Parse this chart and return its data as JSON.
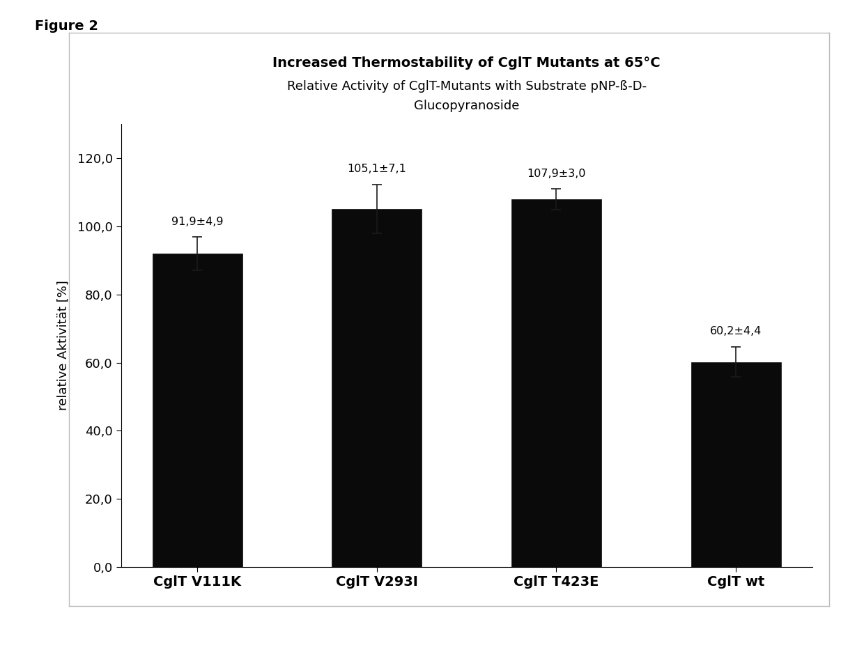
{
  "title_line1": "Increased Thermostability of CglT Mutants at 65°C",
  "title_line2a": "Relative Activity of CglT-Mutants with Substrate pNP-ß-D-",
  "title_line2b": "Glucopyranoside",
  "ylabel": "relative Aktivität [%]",
  "categories": [
    "CglT V111K",
    "CglT V293I",
    "CglT T423E",
    "CglT wt"
  ],
  "values": [
    91.9,
    105.1,
    107.9,
    60.2
  ],
  "errors": [
    4.9,
    7.1,
    3.0,
    4.4
  ],
  "labels": [
    "91,9±4,9",
    "105,1±7,1",
    "107,9±3,0",
    "60,2±4,4"
  ],
  "bar_color": "#0a0a0a",
  "bar_edgecolor": "#0a0a0a",
  "ylim": [
    0,
    130
  ],
  "yticks": [
    0.0,
    20.0,
    40.0,
    60.0,
    80.0,
    100.0,
    120.0
  ],
  "ytick_labels": [
    "0,0",
    "20,0",
    "40,0",
    "60,0",
    "80,0",
    "100,0",
    "120,0"
  ],
  "background_color": "#ffffff",
  "figure_label": "Figure 2",
  "box_facecolor": "#ffffff",
  "box_edgecolor": "#bbbbbb"
}
